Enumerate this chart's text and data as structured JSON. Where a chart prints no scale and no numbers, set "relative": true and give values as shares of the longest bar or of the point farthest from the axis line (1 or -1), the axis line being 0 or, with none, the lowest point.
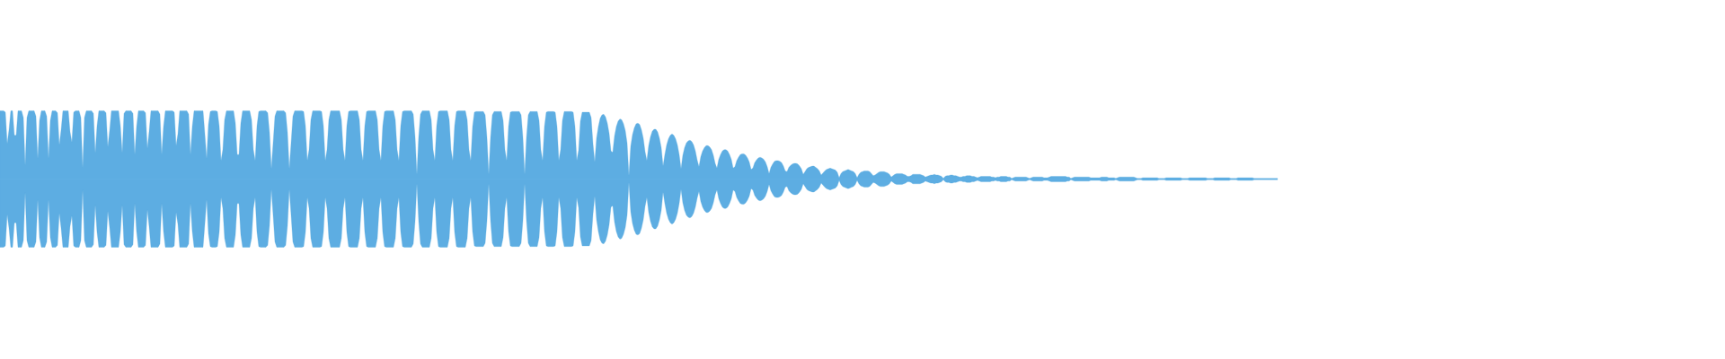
{
  "chart_data": {
    "type": "area",
    "relative": true,
    "ref_lines": [
      {
        "axis": "y",
        "value": 0,
        "color": "#5dade2"
      }
    ],
    "categories": [
      null,
      null,
      null,
      null,
      null,
      null,
      null,
      null,
      null,
      null,
      null,
      null,
      null,
      null,
      null,
      null,
      null,
      null,
      null,
      null,
      null,
      null,
      null,
      null,
      null,
      null,
      null,
      null,
      null,
      null,
      null,
      null,
      null,
      null,
      null,
      null,
      null,
      null,
      null,
      null,
      null,
      null,
      null,
      null,
      null,
      null,
      null,
      null,
      null,
      null,
      null,
      null,
      null,
      null,
      null,
      null,
      null,
      null,
      null,
      null,
      null,
      null,
      null,
      null,
      null,
      null,
      null,
      null,
      null,
      null,
      null,
      null,
      null,
      null,
      null,
      null,
      null,
      null,
      null,
      null,
      null,
      null,
      null,
      null,
      null,
      null,
      null,
      null,
      null,
      null,
      null,
      null,
      null,
      null,
      null,
      null,
      null,
      null,
      null,
      null,
      null,
      null,
      null,
      null,
      null,
      null,
      null,
      null,
      null,
      null,
      null,
      null,
      null,
      null,
      null,
      null,
      null,
      null,
      null,
      null,
      null,
      null,
      null,
      null,
      null,
      null,
      null,
      null,
      null,
      null,
      null,
      null,
      null,
      null,
      null,
      null,
      null,
      null,
      null,
      null,
      null,
      null,
      null,
      null,
      null,
      null,
      null,
      null,
      null,
      null,
      null,
      null,
      null,
      null,
      null,
      null,
      null,
      null,
      null,
      null,
      null,
      null,
      null,
      null,
      null,
      null,
      null,
      null,
      null,
      null,
      null,
      null,
      null,
      null,
      null,
      null,
      null,
      null,
      null,
      null,
      null,
      null,
      null,
      null,
      null,
      null,
      null,
      null,
      null,
      null,
      null,
      null,
      null,
      null,
      null,
      null,
      null,
      null,
      null,
      null,
      null,
      null,
      null,
      null,
      null,
      null,
      null,
      null,
      null,
      null,
      null,
      null,
      null,
      null,
      null,
      null,
      null,
      null,
      null,
      null,
      null,
      null,
      null,
      null,
      null,
      null,
      null,
      null,
      null,
      null,
      null,
      null,
      null,
      null,
      null,
      null,
      null,
      null,
      null,
      null,
      null,
      null,
      null,
      null,
      null,
      null,
      null,
      null,
      null,
      null,
      null,
      null,
      null,
      null,
      null,
      null,
      null,
      null,
      null,
      null,
      null,
      null,
      null,
      null,
      null,
      null,
      null,
      null,
      null,
      null,
      null,
      null,
      null,
      null,
      null,
      null,
      null,
      null,
      null,
      null,
      null,
      null,
      null,
      null,
      null,
      null,
      null,
      null,
      null,
      null,
      null,
      null,
      null,
      null,
      null,
      null,
      null,
      null,
      null,
      null,
      null,
      null,
      null,
      null,
      null,
      null,
      null,
      null,
      null,
      null,
      null,
      null,
      null,
      null,
      null,
      null,
      null,
      null,
      null,
      null,
      null,
      null,
      null,
      null,
      null,
      null,
      null,
      null,
      null,
      null,
      null,
      null,
      null,
      null,
      null,
      null,
      null,
      null,
      null,
      null,
      null,
      null,
      null,
      null,
      null,
      null,
      null,
      null,
      null,
      null,
      null,
      null,
      null,
      null,
      null,
      null,
      null,
      null,
      null,
      null,
      null,
      null,
      null,
      null,
      null,
      null,
      null,
      null,
      null,
      null,
      null,
      null,
      null,
      null,
      null,
      null,
      null,
      null,
      null,
      null,
      null,
      null,
      null,
      null,
      null,
      null,
      null,
      null,
      null,
      null,
      null,
      null,
      null,
      null,
      null,
      null,
      null,
      null,
      null,
      null,
      null,
      null,
      null,
      null,
      null,
      null,
      null,
      null,
      null,
      null,
      null,
      null,
      null,
      null,
      null,
      null,
      null,
      null,
      null,
      null,
      null,
      null,
      null,
      null,
      null,
      null,
      null,
      null,
      null,
      null,
      null,
      null,
      null,
      null,
      null,
      null,
      null,
      null,
      null,
      null,
      null,
      null,
      null,
      null,
      null,
      null,
      null,
      null,
      null,
      null,
      null,
      null,
      null,
      null,
      null,
      null,
      null,
      null,
      null,
      null,
      null,
      null,
      null,
      null,
      null,
      null,
      null,
      null,
      null,
      null,
      null,
      null,
      null,
      null,
      null,
      null,
      null,
      null,
      null,
      null,
      null,
      null,
      null,
      null,
      null,
      null,
      null,
      null,
      null,
      null,
      null,
      null,
      null,
      null,
      null,
      null,
      null,
      null,
      null,
      null,
      null,
      null,
      null,
      null,
      null,
      null,
      null,
      null,
      null,
      null,
      null,
      null,
      null,
      null,
      null,
      null,
      null,
      null,
      null,
      null,
      null,
      null,
      null,
      null,
      null,
      null,
      null,
      null,
      null,
      null,
      null,
      null,
      null,
      null,
      null,
      null,
      null,
      null,
      null,
      null,
      null,
      null,
      null,
      null,
      null,
      null,
      null,
      null,
      null,
      null,
      null,
      null,
      null,
      null,
      null,
      null,
      null,
      null,
      null,
      null,
      null,
      null,
      null,
      null,
      null,
      null,
      null,
      null,
      null,
      null,
      null,
      null,
      null,
      null,
      null,
      null,
      null,
      null,
      null,
      null,
      null,
      null,
      null,
      null,
      null,
      null,
      null,
      null,
      null,
      null,
      null,
      null,
      null,
      null,
      null,
      null,
      null,
      null,
      null,
      null,
      null,
      null,
      null,
      null,
      null,
      null,
      null,
      null,
      null,
      null,
      null,
      null,
      null,
      null,
      null,
      null,
      null,
      null,
      null,
      null,
      null,
      null,
      null,
      null,
      null,
      null,
      null,
      null,
      null,
      null,
      null,
      null,
      null,
      null,
      null,
      null,
      null,
      null,
      null,
      null,
      null,
      null,
      null,
      null,
      null,
      null,
      null,
      null,
      null,
      null,
      null,
      null,
      null,
      null,
      null,
      null,
      null,
      null,
      null,
      null,
      null,
      null,
      null,
      null,
      null,
      null,
      null,
      null,
      null,
      null,
      null,
      null,
      null,
      null,
      null,
      null,
      null,
      null,
      null,
      null,
      null,
      null,
      null,
      null,
      null,
      null,
      null,
      null,
      null,
      null,
      null,
      null,
      null,
      null,
      null,
      null,
      null,
      null,
      null,
      null,
      null,
      null,
      null,
      null,
      null,
      null,
      null,
      null,
      null,
      null,
      null,
      null
    ],
    "series": [
      {
        "color": "#5dade2",
        "values": [
          1,
          1,
          1,
          0.98,
          0.52,
          0.72,
          1,
          1,
          0.64,
          0.64,
          1,
          1,
          1,
          0.9,
          0.2,
          0.9,
          1,
          1,
          1,
          1,
          0.92,
          0.3,
          0.86,
          1,
          1,
          1,
          0.92,
          0.3,
          0.86,
          1,
          1,
          1,
          0.97,
          0.5,
          0.72,
          1,
          1,
          1,
          1,
          0.69,
          0.54,
          0.98,
          1,
          1,
          1,
          0.9,
          0.16,
          0.9,
          1,
          1,
          1,
          1,
          0.96,
          0.38,
          0.78,
          1,
          1,
          1,
          1,
          0.97,
          0.47,
          0.71,
          1,
          1,
          1,
          1,
          1,
          0.78,
          0.38,
          0.96,
          1,
          1,
          1,
          1,
          0.96,
          0.36,
          0.77,
          1,
          1,
          1,
          1,
          0.97,
          0.45,
          0.7,
          1,
          1,
          1,
          1,
          1,
          0.95,
          0.36,
          0.77,
          1,
          1,
          1,
          1,
          1,
          0.98,
          0.49,
          0.66,
          1,
          1,
          1,
          1,
          1,
          0.95,
          0.36,
          0.77,
          1,
          1,
          1,
          1,
          1,
          1,
          0.66,
          0.3,
          0.8,
          0.99,
          1,
          1,
          1,
          0.99,
          0.78,
          0.27,
          0.43,
          0.87,
          1,
          1,
          1,
          1,
          1,
          0.82,
          0.36,
          0.36,
          0.82,
          1,
          1,
          1,
          1,
          1,
          0.87,
          0.43,
          0.27,
          0.78,
          0.99,
          1,
          1,
          1,
          1,
          0.97,
          0.68,
          0.15,
          0.53,
          0.92,
          1,
          1,
          1,
          1,
          1,
          0.97,
          0.68,
          0.15,
          0.53,
          0.92,
          1,
          1,
          1,
          1,
          1,
          0.99,
          0.78,
          0.27,
          0.43,
          0.87,
          1,
          1,
          1,
          1,
          1,
          0.99,
          0.78,
          0.27,
          0.43,
          0.87,
          1,
          1,
          1,
          1,
          1,
          1,
          0.87,
          0.43,
          0.27,
          0.78,
          0.99,
          1,
          1,
          1,
          1,
          1,
          0.87,
          0.43,
          0.27,
          0.78,
          0.99,
          1,
          1,
          1,
          1,
          1,
          0.87,
          0.43,
          0.27,
          0.78,
          0.99,
          1,
          1,
          1,
          1,
          1,
          0.87,
          0.43,
          0.27,
          0.78,
          0.99,
          1,
          1,
          1,
          1,
          1,
          0.95,
          0.62,
          0.07,
          0.62,
          0.95,
          1,
          1,
          1,
          1,
          1,
          0.87,
          0.43,
          0.27,
          0.78,
          0.99,
          1,
          1,
          1,
          1,
          1,
          0.87,
          0.43,
          0.27,
          0.78,
          0.99,
          1,
          1,
          1,
          1,
          1,
          0.87,
          0.43,
          0.27,
          0.77,
          0.98,
          0.99,
          0.99,
          0.99,
          0.99,
          0.99,
          0.94,
          0.61,
          0.07,
          0.61,
          0.94,
          0.99,
          0.99,
          0.99,
          0.99,
          0.99,
          0.86,
          0.43,
          0.27,
          0.77,
          0.98,
          0.99,
          0.99,
          0.99,
          0.99,
          0.99,
          0.94,
          0.61,
          0.07,
          0.61,
          0.94,
          0.99,
          0.99,
          0.99,
          0.99,
          0.99,
          0.86,
          0.43,
          0.27,
          0.77,
          0.98,
          0.99,
          0.99,
          0.99,
          0.99,
          0.98,
          0.77,
          0.27,
          0.43,
          0.86,
          0.99,
          0.99,
          0.99,
          0.99,
          0.99,
          0.98,
          0.77,
          0.27,
          0.42,
          0.85,
          0.98,
          0.98,
          0.98,
          0.98,
          0.98,
          0.9,
          0.52,
          0.25,
          0.6,
          0.77,
          0.89,
          0.94,
          0.95,
          0.91,
          0.82,
          0.67,
          0.41,
          0.39,
          0.63,
          0.77,
          0.85,
          0.88,
          0.87,
          0.81,
          0.71,
          0.53,
          0.05,
          0.48,
          0.65,
          0.75,
          0.81,
          0.82,
          0.8,
          0.72,
          0.6,
          0.4,
          0.27,
          0.49,
          0.62,
          0.7,
          0.73,
          0.73,
          0.69,
          0.6,
          0.46,
          0.19,
          0.36,
          0.5,
          0.59,
          0.64,
          0.66,
          0.64,
          0.59,
          0.5,
          0.36,
          0.15,
          0.35,
          0.46,
          0.53,
          0.56,
          0.57,
          0.55,
          0.5,
          0.41,
          0.28,
          0.18,
          0.33,
          0.41,
          0.46,
          0.49,
          0.49,
          0.47,
          0.43,
          0.35,
          0.23,
          0.16,
          0.29,
          0.36,
          0.41,
          0.43,
          0.43,
          0.41,
          0.36,
          0.29,
          0.16,
          0.18,
          0.27,
          0.32,
          0.36,
          0.37,
          0.37,
          0.35,
          0.31,
          0.25,
          0.14,
          0.16,
          0.24,
          0.28,
          0.31,
          0.32,
          0.31,
          0.29,
          0.25,
          0.18,
          0.08,
          0.17,
          0.22,
          0.26,
          0.27,
          0.27,
          0.26,
          0.24,
          0.19,
          0.12,
          0.11,
          0.17,
          0.2,
          0.22,
          0.23,
          0.23,
          0.22,
          0.19,
          0.15,
          0.07,
          0.11,
          0.15,
          0.17,
          0.18,
          0.19,
          0.19,
          0.17,
          0.15,
          0.12,
          0.06,
          0.09,
          0.12,
          0.14,
          0.15,
          0.16,
          0.15,
          0.14,
          0.13,
          0.1,
          0.02,
          0.08,
          0.11,
          0.12,
          0.13,
          0.14,
          0.13,
          0.12,
          0.11,
          0.08,
          0.02,
          0.07,
          0.1,
          0.11,
          0.12,
          0.12,
          0.12,
          0.11,
          0.08,
          0.05,
          0.06,
          0.08,
          0.1,
          0.11,
          0.11,
          0.11,
          0.1,
          0.09,
          0.07,
          0.03,
          0.05,
          0.07,
          0.08,
          0.08,
          0.08,
          0.08,
          0.07,
          0.06,
          0.04,
          0.04,
          0.05,
          0.07,
          0.07,
          0.07,
          0.07,
          0.07,
          0.06,
          0.05,
          0.03,
          0.04,
          0.05,
          0.06,
          0.06,
          0.07,
          0.06,
          0.06,
          0.05,
          0.04,
          0.01,
          0.04,
          0.05,
          0.05,
          0.06,
          0.06,
          0.05,
          0.05,
          0.04,
          0.03,
          0.03,
          0.04,
          0.04,
          0.05,
          0.05,
          0.05,
          0.04,
          0.04,
          0.03,
          0.02,
          0.03,
          0.04,
          0.04,
          0.04,
          0.04,
          0.04,
          0.04,
          0.03,
          0.03,
          0.02,
          0.03,
          0.03,
          0.04,
          0.04,
          0.04,
          0.04,
          0.03,
          0.03,
          0.01,
          0.02,
          0.03,
          0.03,
          0.03,
          0.03,
          0.03,
          0.03,
          0.03,
          0.02,
          0.01,
          0.02,
          0.03,
          0.03,
          0.03,
          0.03,
          0.03,
          0.03,
          0.02,
          0.02,
          0.02,
          0.03,
          0.04,
          0.04,
          0.04,
          0.04,
          0.04,
          0.04,
          0.04,
          0.04,
          0.04,
          0.03,
          0.03,
          0.01,
          0.02,
          0.03,
          0.03,
          0.03,
          0.03,
          0.03,
          0.03,
          0.03,
          0.03,
          0.03,
          0.02,
          0.02,
          0.02,
          0.02,
          0.02,
          0.02,
          0.03,
          0.03,
          0.03,
          0.03,
          0.02,
          0.02,
          0.02,
          0.02,
          0.01,
          0.02,
          0.03,
          0.03,
          0.03,
          0.03,
          0.03,
          0.03,
          0.03,
          0.03,
          0.03,
          0.02,
          0.01,
          0.01,
          0.01,
          0.02,
          0.02,
          0.02,
          0.02,
          0.02,
          0.02,
          0.02,
          0.02,
          0.02,
          0.01,
          0.01,
          0.01,
          0.01,
          0.02,
          0.02,
          0.02,
          0.02,
          0.02,
          0.02,
          0.02,
          0.02,
          0.02,
          0.01,
          0.01,
          0.01,
          0.01,
          0.02,
          0.02,
          0.02,
          0.02,
          0.02,
          0.02,
          0.02,
          0.02,
          0.02,
          0.02,
          0.01,
          0.01,
          0.01,
          0.01,
          0.02,
          0.02,
          0.02,
          0.02,
          0.02,
          0.02,
          0.02,
          0.02,
          0.02,
          0.01,
          0.01,
          0.01,
          0.01,
          0.02,
          0.02,
          0.02,
          0.02,
          0.02,
          0.02,
          0.02,
          0.02,
          0.02,
          0.01,
          0.01,
          0.01,
          0.01,
          0.01,
          0.01,
          0.01,
          0.01,
          0.01,
          0.01,
          0.01,
          0.01,
          0.01,
          0.01
        ]
      },
      {
        "color": "#5dade2",
        "values": [
          -1,
          -1,
          -1,
          -0.98,
          -0.52,
          -0.72,
          -1,
          -1,
          -0.64,
          -0.64,
          -1,
          -1,
          -1,
          -0.9,
          -0.2,
          -0.9,
          -1,
          -1,
          -1,
          -1,
          -0.92,
          -0.3,
          -0.86,
          -1,
          -1,
          -1,
          -0.92,
          -0.3,
          -0.86,
          -1,
          -1,
          -1,
          -0.97,
          -0.5,
          -0.72,
          -1,
          -1,
          -1,
          -1,
          -0.69,
          -0.54,
          -0.98,
          -1,
          -1,
          -1,
          -0.9,
          -0.16,
          -0.9,
          -1,
          -1,
          -1,
          -1,
          -0.96,
          -0.38,
          -0.78,
          -1,
          -1,
          -1,
          -1,
          -0.97,
          -0.47,
          -0.71,
          -1,
          -1,
          -1,
          -1,
          -1,
          -0.78,
          -0.38,
          -0.96,
          -1,
          -1,
          -1,
          -1,
          -0.96,
          -0.36,
          -0.77,
          -1,
          -1,
          -1,
          -1,
          -0.97,
          -0.45,
          -0.7,
          -1,
          -1,
          -1,
          -1,
          -1,
          -0.95,
          -0.36,
          -0.77,
          -1,
          -1,
          -1,
          -1,
          -1,
          -0.98,
          -0.49,
          -0.66,
          -1,
          -1,
          -1,
          -1,
          -1,
          -0.95,
          -0.36,
          -0.77,
          -1,
          -1,
          -1,
          -1,
          -1,
          -1,
          -0.66,
          -0.3,
          -0.8,
          -0.99,
          -1,
          -1,
          -1,
          -0.99,
          -0.78,
          -0.27,
          -0.43,
          -0.87,
          -1,
          -1,
          -1,
          -1,
          -1,
          -0.82,
          -0.36,
          -0.36,
          -0.82,
          -1,
          -1,
          -1,
          -1,
          -1,
          -0.87,
          -0.43,
          -0.27,
          -0.78,
          -0.99,
          -1,
          -1,
          -1,
          -1,
          -0.97,
          -0.68,
          -0.15,
          -0.53,
          -0.92,
          -1,
          -1,
          -1,
          -1,
          -1,
          -0.97,
          -0.68,
          -0.15,
          -0.53,
          -0.92,
          -1,
          -1,
          -1,
          -1,
          -1,
          -0.99,
          -0.78,
          -0.27,
          -0.43,
          -0.87,
          -1,
          -1,
          -1,
          -1,
          -1,
          -0.99,
          -0.78,
          -0.27,
          -0.43,
          -0.87,
          -1,
          -1,
          -1,
          -1,
          -1,
          -1,
          -0.87,
          -0.43,
          -0.27,
          -0.78,
          -0.99,
          -1,
          -1,
          -1,
          -1,
          -1,
          -0.87,
          -0.43,
          -0.27,
          -0.78,
          -0.99,
          -1,
          -1,
          -1,
          -1,
          -1,
          -0.87,
          -0.43,
          -0.27,
          -0.78,
          -0.99,
          -1,
          -1,
          -1,
          -1,
          -1,
          -0.87,
          -0.43,
          -0.27,
          -0.78,
          -0.99,
          -1,
          -1,
          -1,
          -1,
          -1,
          -0.95,
          -0.62,
          -0.07,
          -0.62,
          -0.95,
          -1,
          -1,
          -1,
          -1,
          -1,
          -0.87,
          -0.43,
          -0.27,
          -0.78,
          -0.99,
          -1,
          -1,
          -1,
          -1,
          -1,
          -0.87,
          -0.43,
          -0.27,
          -0.78,
          -0.99,
          -1,
          -1,
          -1,
          -1,
          -1,
          -0.87,
          -0.43,
          -0.27,
          -0.77,
          -0.98,
          -0.99,
          -0.99,
          -0.99,
          -0.99,
          -0.99,
          -0.94,
          -0.61,
          -0.07,
          -0.61,
          -0.94,
          -0.99,
          -0.99,
          -0.99,
          -0.99,
          -0.99,
          -0.86,
          -0.43,
          -0.27,
          -0.77,
          -0.98,
          -0.99,
          -0.99,
          -0.99,
          -0.99,
          -0.99,
          -0.94,
          -0.61,
          -0.07,
          -0.61,
          -0.94,
          -0.99,
          -0.99,
          -0.99,
          -0.99,
          -0.99,
          -0.86,
          -0.43,
          -0.27,
          -0.77,
          -0.98,
          -0.99,
          -0.99,
          -0.99,
          -0.99,
          -0.98,
          -0.77,
          -0.27,
          -0.43,
          -0.86,
          -0.99,
          -0.99,
          -0.99,
          -0.99,
          -0.99,
          -0.98,
          -0.77,
          -0.27,
          -0.42,
          -0.85,
          -0.98,
          -0.98,
          -0.98,
          -0.98,
          -0.98,
          -0.9,
          -0.52,
          -0.25,
          -0.6,
          -0.77,
          -0.89,
          -0.94,
          -0.95,
          -0.91,
          -0.82,
          -0.67,
          -0.41,
          -0.39,
          -0.63,
          -0.77,
          -0.85,
          -0.88,
          -0.87,
          -0.81,
          -0.71,
          -0.53,
          -0.05,
          -0.48,
          -0.65,
          -0.75,
          -0.81,
          -0.82,
          -0.8,
          -0.72,
          -0.6,
          -0.4,
          -0.27,
          -0.49,
          -0.62,
          -0.7,
          -0.73,
          -0.73,
          -0.69,
          -0.6,
          -0.46,
          -0.19,
          -0.36,
          -0.5,
          -0.59,
          -0.64,
          -0.66,
          -0.64,
          -0.59,
          -0.5,
          -0.36,
          -0.15,
          -0.35,
          -0.46,
          -0.53,
          -0.56,
          -0.57,
          -0.55,
          -0.5,
          -0.41,
          -0.28,
          -0.18,
          -0.33,
          -0.41,
          -0.46,
          -0.49,
          -0.49,
          -0.47,
          -0.43,
          -0.35,
          -0.23,
          -0.16,
          -0.29,
          -0.36,
          -0.41,
          -0.43,
          -0.43,
          -0.41,
          -0.36,
          -0.29,
          -0.16,
          -0.18,
          -0.27,
          -0.32,
          -0.36,
          -0.37,
          -0.37,
          -0.35,
          -0.31,
          -0.25,
          -0.14,
          -0.16,
          -0.24,
          -0.28,
          -0.31,
          -0.32,
          -0.31,
          -0.29,
          -0.25,
          -0.18,
          -0.08,
          -0.17,
          -0.22,
          -0.26,
          -0.27,
          -0.27,
          -0.26,
          -0.24,
          -0.19,
          -0.12,
          -0.11,
          -0.17,
          -0.2,
          -0.22,
          -0.23,
          -0.23,
          -0.22,
          -0.19,
          -0.15,
          -0.07,
          -0.11,
          -0.15,
          -0.17,
          -0.18,
          -0.19,
          -0.19,
          -0.17,
          -0.15,
          -0.12,
          -0.06,
          -0.09,
          -0.12,
          -0.14,
          -0.15,
          -0.16,
          -0.15,
          -0.14,
          -0.13,
          -0.1,
          -0.02,
          -0.08,
          -0.11,
          -0.12,
          -0.13,
          -0.14,
          -0.13,
          -0.12,
          -0.11,
          -0.08,
          -0.02,
          -0.07,
          -0.1,
          -0.11,
          -0.12,
          -0.12,
          -0.12,
          -0.11,
          -0.08,
          -0.05,
          -0.06,
          -0.08,
          -0.1,
          -0.11,
          -0.11,
          -0.11,
          -0.1,
          -0.09,
          -0.07,
          -0.03,
          -0.05,
          -0.07,
          -0.08,
          -0.08,
          -0.08,
          -0.08,
          -0.07,
          -0.06,
          -0.04,
          -0.04,
          -0.05,
          -0.07,
          -0.07,
          -0.07,
          -0.07,
          -0.07,
          -0.06,
          -0.05,
          -0.03,
          -0.04,
          -0.05,
          -0.06,
          -0.06,
          -0.07,
          -0.06,
          -0.06,
          -0.05,
          -0.04,
          -0.01,
          -0.04,
          -0.05,
          -0.05,
          -0.06,
          -0.06,
          -0.05,
          -0.05,
          -0.04,
          -0.03,
          -0.03,
          -0.04,
          -0.04,
          -0.05,
          -0.05,
          -0.05,
          -0.04,
          -0.04,
          -0.03,
          -0.02,
          -0.03,
          -0.04,
          -0.04,
          -0.04,
          -0.04,
          -0.04,
          -0.04,
          -0.03,
          -0.03,
          -0.02,
          -0.03,
          -0.03,
          -0.04,
          -0.04,
          -0.04,
          -0.04,
          -0.03,
          -0.03,
          -0.01,
          -0.02,
          -0.03,
          -0.03,
          -0.03,
          -0.03,
          -0.03,
          -0.03,
          -0.03,
          -0.02,
          -0.01,
          -0.02,
          -0.03,
          -0.03,
          -0.03,
          -0.03,
          -0.03,
          -0.03,
          -0.02,
          -0.02,
          -0.02,
          -0.03,
          -0.04,
          -0.04,
          -0.04,
          -0.04,
          -0.04,
          -0.04,
          -0.04,
          -0.04,
          -0.04,
          -0.03,
          -0.03,
          -0.01,
          -0.02,
          -0.03,
          -0.03,
          -0.03,
          -0.03,
          -0.03,
          -0.03,
          -0.03,
          -0.03,
          -0.03,
          -0.02,
          -0.02,
          -0.02,
          -0.02,
          -0.02,
          -0.02,
          -0.03,
          -0.03,
          -0.03,
          -0.03,
          -0.02,
          -0.02,
          -0.02,
          -0.02,
          -0.01,
          -0.02,
          -0.03,
          -0.03,
          -0.03,
          -0.03,
          -0.03,
          -0.03,
          -0.03,
          -0.03,
          -0.03,
          -0.02,
          -0.01,
          -0.01,
          -0.01,
          -0.02,
          -0.02,
          -0.02,
          -0.02,
          -0.02,
          -0.02,
          -0.02,
          -0.02,
          -0.02,
          -0.01,
          -0.01,
          -0.01,
          -0.01,
          -0.02,
          -0.02,
          -0.02,
          -0.02,
          -0.02,
          -0.02,
          -0.02,
          -0.02,
          -0.02,
          -0.01,
          -0.01,
          -0.01,
          -0.01,
          -0.02,
          -0.02,
          -0.02,
          -0.02,
          -0.02,
          -0.02,
          -0.02,
          -0.02,
          -0.02,
          -0.02,
          -0.01,
          -0.01,
          -0.01,
          -0.01,
          -0.02,
          -0.02,
          -0.02,
          -0.02,
          -0.02,
          -0.02,
          -0.02,
          -0.02,
          -0.02,
          -0.01,
          -0.01,
          -0.01,
          -0.01,
          -0.02,
          -0.02,
          -0.02,
          -0.02,
          -0.02,
          -0.02,
          -0.02,
          -0.02,
          -0.02,
          -0.01,
          -0.01,
          -0.01,
          -0.01,
          -0.01,
          -0.01,
          -0.01,
          -0.01,
          -0.01,
          -0.01,
          -0.01,
          -0.01,
          -0.01,
          -0.01
        ]
      }
    ]
  }
}
